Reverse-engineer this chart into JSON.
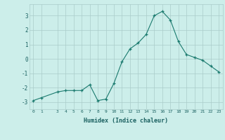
{
  "x": [
    0,
    1,
    3,
    4,
    5,
    6,
    7,
    8,
    9,
    10,
    11,
    12,
    13,
    14,
    15,
    16,
    17,
    18,
    19,
    20,
    21,
    22,
    23
  ],
  "y": [
    -2.9,
    -2.7,
    -2.3,
    -2.2,
    -2.2,
    -2.2,
    -1.8,
    -2.9,
    -2.8,
    -1.7,
    -0.2,
    0.7,
    1.1,
    1.7,
    3.0,
    3.3,
    2.7,
    1.2,
    0.3,
    0.1,
    -0.1,
    -0.5,
    -0.9
  ],
  "line_color": "#1a7a6e",
  "bg_color": "#cceeea",
  "grid_color": "#aaccca",
  "xlabel": "Humidex (Indice chaleur)",
  "ylim": [
    -3.5,
    3.8
  ],
  "xlim": [
    -0.5,
    23.5
  ],
  "yticks": [
    -3,
    -2,
    -1,
    0,
    1,
    2,
    3
  ],
  "xticks": [
    0,
    1,
    3,
    4,
    5,
    6,
    7,
    8,
    9,
    10,
    11,
    12,
    13,
    14,
    15,
    16,
    17,
    18,
    19,
    20,
    21,
    22,
    23
  ],
  "font_color": "#1a6060"
}
